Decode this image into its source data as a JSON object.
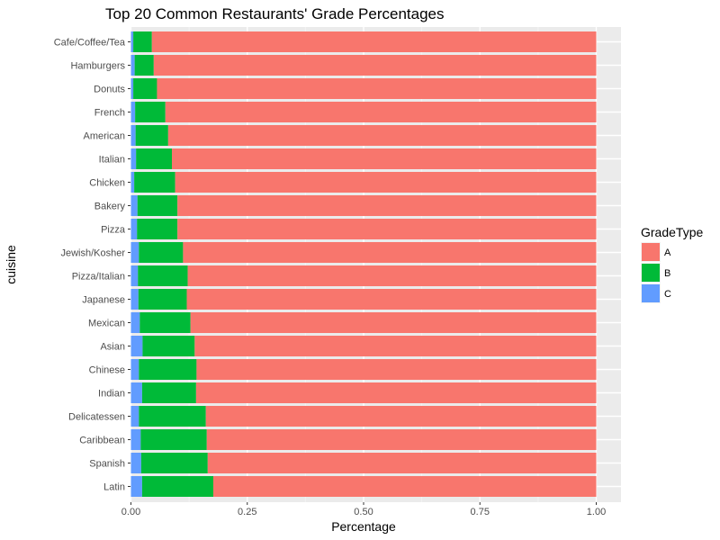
{
  "chart_data": {
    "type": "bar",
    "orientation": "horizontal",
    "stacked": true,
    "title": "Top 20 Common Restaurants' Grade Percentages",
    "xlabel": "Percentage",
    "ylabel": "cuisine",
    "xlim": [
      0,
      1
    ],
    "xticks": [
      "0.00",
      "0.25",
      "0.50",
      "0.75",
      "1.00"
    ],
    "grid": true,
    "legend": {
      "title": "GradeType",
      "position": "right",
      "entries": [
        "A",
        "B",
        "C"
      ]
    },
    "categories": [
      "Cafe/Coffee/Tea",
      "Hamburgers",
      "Donuts",
      "French",
      "American",
      "Italian",
      "Chicken",
      "Bakery",
      "Pizza",
      "Jewish/Kosher",
      "Pizza/Italian",
      "Japanese",
      "Mexican",
      "Asian",
      "Chinese",
      "Indian",
      "Delicatessen",
      "Caribbean",
      "Spanish",
      "Latin"
    ],
    "series": [
      {
        "name": "C",
        "color": "#619CFF",
        "values": [
          0.005,
          0.008,
          0.005,
          0.009,
          0.01,
          0.011,
          0.007,
          0.014,
          0.013,
          0.017,
          0.015,
          0.016,
          0.019,
          0.025,
          0.017,
          0.024,
          0.017,
          0.021,
          0.022,
          0.024
        ]
      },
      {
        "name": "B",
        "color": "#00BA38",
        "values": [
          0.04,
          0.041,
          0.051,
          0.065,
          0.07,
          0.077,
          0.088,
          0.086,
          0.087,
          0.095,
          0.107,
          0.104,
          0.109,
          0.112,
          0.124,
          0.116,
          0.144,
          0.142,
          0.143,
          0.153
        ]
      },
      {
        "name": "A",
        "color": "#F8766D",
        "values": [
          0.955,
          0.951,
          0.944,
          0.926,
          0.92,
          0.912,
          0.905,
          0.9,
          0.9,
          0.888,
          0.878,
          0.88,
          0.872,
          0.863,
          0.859,
          0.86,
          0.839,
          0.837,
          0.835,
          0.823
        ]
      }
    ]
  }
}
